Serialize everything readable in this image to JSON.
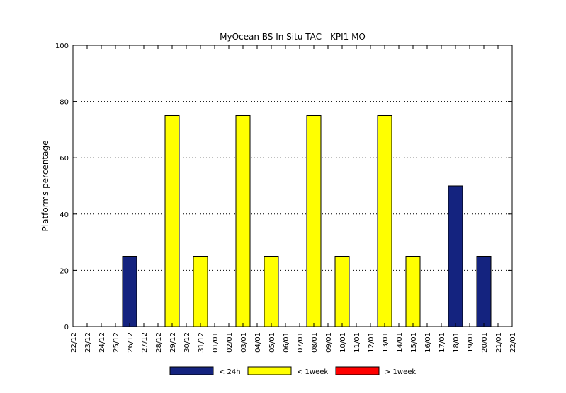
{
  "chart_data": {
    "type": "bar",
    "title": "MyOcean  BS In Situ TAC - KPI1  MO",
    "xlabel": "",
    "ylabel": "Platforms percentage",
    "ylim": [
      0,
      100
    ],
    "yticks": [
      "0",
      "20",
      "40",
      "60",
      "80",
      "100"
    ],
    "grid": "horizontal-dotted",
    "legend_position": "bottom",
    "categories": [
      "22/12",
      "23/12",
      "24/12",
      "25/12",
      "26/12",
      "27/12",
      "28/12",
      "29/12",
      "30/12",
      "31/12",
      "01/01",
      "02/01",
      "03/01",
      "04/01",
      "05/01",
      "06/01",
      "07/01",
      "08/01",
      "09/01",
      "10/01",
      "11/01",
      "12/01",
      "13/01",
      "14/01",
      "15/01",
      "16/01",
      "17/01",
      "18/01",
      "19/01",
      "20/01",
      "21/01",
      "22/01"
    ],
    "bars": [
      {
        "x": "26/12",
        "value": 25,
        "series": 0
      },
      {
        "x": "29/12",
        "value": 75,
        "series": 1
      },
      {
        "x": "31/12",
        "value": 25,
        "series": 1
      },
      {
        "x": "03/01",
        "value": 75,
        "series": 1
      },
      {
        "x": "05/01",
        "value": 25,
        "series": 1
      },
      {
        "x": "08/01",
        "value": 75,
        "series": 1
      },
      {
        "x": "10/01",
        "value": 25,
        "series": 1
      },
      {
        "x": "13/01",
        "value": 75,
        "series": 1
      },
      {
        "x": "15/01",
        "value": 25,
        "series": 1
      },
      {
        "x": "18/01",
        "value": 50,
        "series": 0
      },
      {
        "x": "20/01",
        "value": 25,
        "series": 0
      }
    ],
    "series": [
      {
        "name": "< 24h",
        "color": "#14237f"
      },
      {
        "name": "< 1week",
        "color": "#ffff00"
      },
      {
        "name": "> 1week",
        "color": "#ff0000"
      }
    ]
  }
}
